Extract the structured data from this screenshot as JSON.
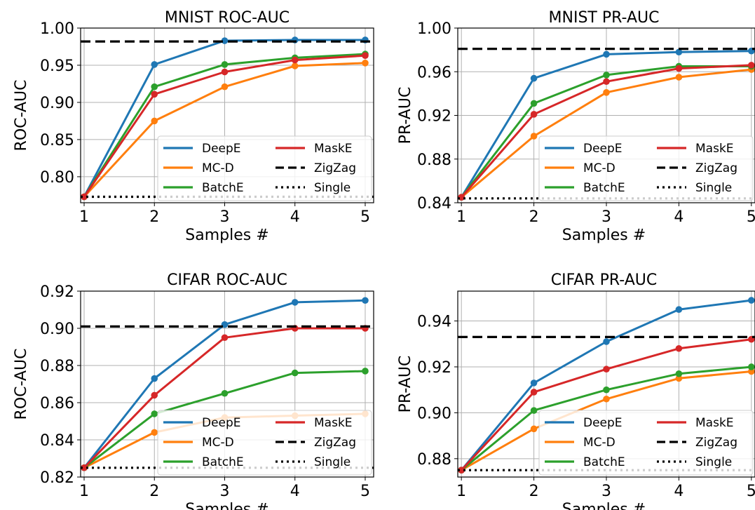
{
  "chart_data": [
    {
      "type": "line",
      "title": "MNIST ROC-AUC",
      "xlabel": "Samples #",
      "ylabel": "ROC-AUC",
      "x": [
        1,
        2,
        3,
        4,
        5
      ],
      "xlim": [
        0.95,
        5.12
      ],
      "ylim": [
        0.765,
        1.0
      ],
      "xticks": [
        "1",
        "2",
        "3",
        "4",
        "5"
      ],
      "yticks": [
        "0.80",
        "0.85",
        "0.90",
        "0.95",
        "1.00"
      ],
      "ytick_values": [
        0.8,
        0.85,
        0.9,
        0.95,
        1.0
      ],
      "grid": true,
      "legend_position": "lower-right",
      "series": [
        {
          "name": "DeepE",
          "color": "#1f77b4",
          "style": "solid",
          "markers": true,
          "values": [
            0.773,
            0.951,
            0.983,
            0.984,
            0.984
          ]
        },
        {
          "name": "MC-D",
          "color": "#ff7f0e",
          "style": "solid",
          "markers": true,
          "values": [
            0.773,
            0.875,
            0.921,
            0.949,
            0.953
          ]
        },
        {
          "name": "BatchE",
          "color": "#2ca02c",
          "style": "solid",
          "markers": true,
          "values": [
            0.773,
            0.921,
            0.951,
            0.96,
            0.965
          ]
        },
        {
          "name": "MaskE",
          "color": "#d62728",
          "style": "solid",
          "markers": true,
          "values": [
            0.773,
            0.911,
            0.941,
            0.957,
            0.963
          ]
        },
        {
          "name": "ZigZag",
          "color": "#000000",
          "style": "dashed",
          "markers": false,
          "values": [
            0.982,
            0.982,
            0.982,
            0.982,
            0.982
          ]
        },
        {
          "name": "Single",
          "color": "#000000",
          "style": "dotted",
          "markers": false,
          "values": [
            0.773,
            0.773,
            0.773,
            0.773,
            0.773
          ]
        }
      ]
    },
    {
      "type": "line",
      "title": "MNIST PR-AUC",
      "xlabel": "Samples #",
      "ylabel": "PR-AUC",
      "x": [
        1,
        2,
        3,
        4,
        5
      ],
      "xlim": [
        0.95,
        5.05
      ],
      "ylim": [
        0.84,
        1.0
      ],
      "xticks": [
        "1",
        "2",
        "3",
        "4",
        "5"
      ],
      "yticks": [
        "0.84",
        "0.88",
        "0.92",
        "0.96",
        "1.00"
      ],
      "ytick_values": [
        0.84,
        0.88,
        0.92,
        0.96,
        1.0
      ],
      "grid": true,
      "legend_position": "lower-right",
      "series": [
        {
          "name": "DeepE",
          "color": "#1f77b4",
          "style": "solid",
          "markers": true,
          "values": [
            0.845,
            0.954,
            0.976,
            0.978,
            0.979
          ]
        },
        {
          "name": "MC-D",
          "color": "#ff7f0e",
          "style": "solid",
          "markers": true,
          "values": [
            0.845,
            0.901,
            0.941,
            0.955,
            0.962
          ]
        },
        {
          "name": "BatchE",
          "color": "#2ca02c",
          "style": "solid",
          "markers": true,
          "values": [
            0.845,
            0.931,
            0.957,
            0.965,
            0.965
          ]
        },
        {
          "name": "MaskE",
          "color": "#d62728",
          "style": "solid",
          "markers": true,
          "values": [
            0.845,
            0.921,
            0.951,
            0.963,
            0.966
          ]
        },
        {
          "name": "ZigZag",
          "color": "#000000",
          "style": "dashed",
          "markers": false,
          "values": [
            0.981,
            0.981,
            0.981,
            0.981,
            0.981
          ]
        },
        {
          "name": "Single",
          "color": "#000000",
          "style": "dotted",
          "markers": false,
          "values": [
            0.844,
            0.844,
            0.844,
            0.844,
            0.844
          ]
        }
      ]
    },
    {
      "type": "line",
      "title": "CIFAR ROC-AUC",
      "xlabel": "Samples #",
      "ylabel": "ROC-AUC",
      "x": [
        1,
        2,
        3,
        4,
        5
      ],
      "xlim": [
        0.95,
        5.12
      ],
      "ylim": [
        0.82,
        0.92
      ],
      "xticks": [
        "1",
        "2",
        "3",
        "4",
        "5"
      ],
      "yticks": [
        "0.82",
        "0.84",
        "0.86",
        "0.88",
        "0.90",
        "0.92"
      ],
      "ytick_values": [
        0.82,
        0.84,
        0.86,
        0.88,
        0.9,
        0.92
      ],
      "grid": true,
      "legend_position": "lower-right",
      "series": [
        {
          "name": "DeepE",
          "color": "#1f77b4",
          "style": "solid",
          "markers": true,
          "values": [
            0.825,
            0.873,
            0.902,
            0.914,
            0.915
          ]
        },
        {
          "name": "MC-D",
          "color": "#ff7f0e",
          "style": "solid",
          "markers": true,
          "values": [
            0.825,
            0.844,
            0.852,
            0.853,
            0.854
          ]
        },
        {
          "name": "BatchE",
          "color": "#2ca02c",
          "style": "solid",
          "markers": true,
          "values": [
            0.825,
            0.854,
            0.865,
            0.876,
            0.877
          ]
        },
        {
          "name": "MaskE",
          "color": "#d62728",
          "style": "solid",
          "markers": true,
          "values": [
            0.825,
            0.864,
            0.895,
            0.9,
            0.9
          ]
        },
        {
          "name": "ZigZag",
          "color": "#000000",
          "style": "dashed",
          "markers": false,
          "values": [
            0.901,
            0.901,
            0.901,
            0.901,
            0.901
          ]
        },
        {
          "name": "Single",
          "color": "#000000",
          "style": "dotted",
          "markers": false,
          "values": [
            0.825,
            0.825,
            0.825,
            0.825,
            0.825
          ]
        }
      ]
    },
    {
      "type": "line",
      "title": "CIFAR PR-AUC",
      "xlabel": "Samples #",
      "ylabel": "PR-AUC",
      "x": [
        1,
        2,
        3,
        4,
        5
      ],
      "xlim": [
        0.95,
        5.05
      ],
      "ylim": [
        0.872,
        0.953
      ],
      "xticks": [
        "1",
        "2",
        "3",
        "4",
        "5"
      ],
      "yticks": [
        "0.88",
        "0.90",
        "0.92",
        "0.94"
      ],
      "ytick_values": [
        0.88,
        0.9,
        0.92,
        0.94
      ],
      "grid": true,
      "legend_position": "lower-right",
      "series": [
        {
          "name": "DeepE",
          "color": "#1f77b4",
          "style": "solid",
          "markers": true,
          "values": [
            0.875,
            0.913,
            0.931,
            0.945,
            0.949
          ]
        },
        {
          "name": "MC-D",
          "color": "#ff7f0e",
          "style": "solid",
          "markers": true,
          "values": [
            0.875,
            0.893,
            0.906,
            0.915,
            0.918
          ]
        },
        {
          "name": "BatchE",
          "color": "#2ca02c",
          "style": "solid",
          "markers": true,
          "values": [
            0.875,
            0.901,
            0.91,
            0.917,
            0.92
          ]
        },
        {
          "name": "MaskE",
          "color": "#d62728",
          "style": "solid",
          "markers": true,
          "values": [
            0.875,
            0.909,
            0.919,
            0.928,
            0.932
          ]
        },
        {
          "name": "ZigZag",
          "color": "#000000",
          "style": "dashed",
          "markers": false,
          "values": [
            0.933,
            0.933,
            0.933,
            0.933,
            0.933
          ]
        },
        {
          "name": "Single",
          "color": "#000000",
          "style": "dotted",
          "markers": false,
          "values": [
            0.875,
            0.875,
            0.875,
            0.875,
            0.875
          ]
        }
      ]
    }
  ]
}
